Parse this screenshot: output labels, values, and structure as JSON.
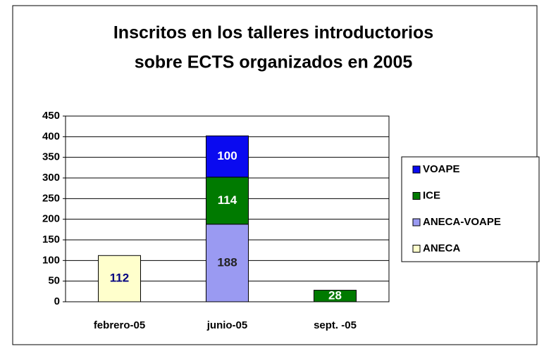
{
  "chart_data": {
    "type": "stacked_bar",
    "title": [
      "Inscritos en los talleres introductorios",
      "sobre ECTS organizados en 2005"
    ],
    "categories": [
      "febrero-05",
      "junio-05",
      "sept. -05"
    ],
    "series": [
      {
        "name": "ANECA",
        "color": "#ffffcc",
        "label_color": "#000080",
        "values": [
          112,
          null,
          null
        ]
      },
      {
        "name": "ANECA-VOAPE",
        "color": "#9a9af2",
        "label_color": "#222222",
        "values": [
          null,
          188,
          null
        ]
      },
      {
        "name": "ICE",
        "color": "#007a00",
        "label_color": "#ffffff",
        "values": [
          null,
          114,
          28
        ]
      },
      {
        "name": "VOAPE",
        "color": "#0a0af0",
        "label_color": "#ffffff",
        "values": [
          null,
          100,
          null
        ]
      }
    ],
    "ylim": [
      0,
      450
    ],
    "yticks": [
      0,
      50,
      100,
      150,
      200,
      250,
      300,
      350,
      400,
      450
    ],
    "grid": true,
    "legend": "right"
  }
}
